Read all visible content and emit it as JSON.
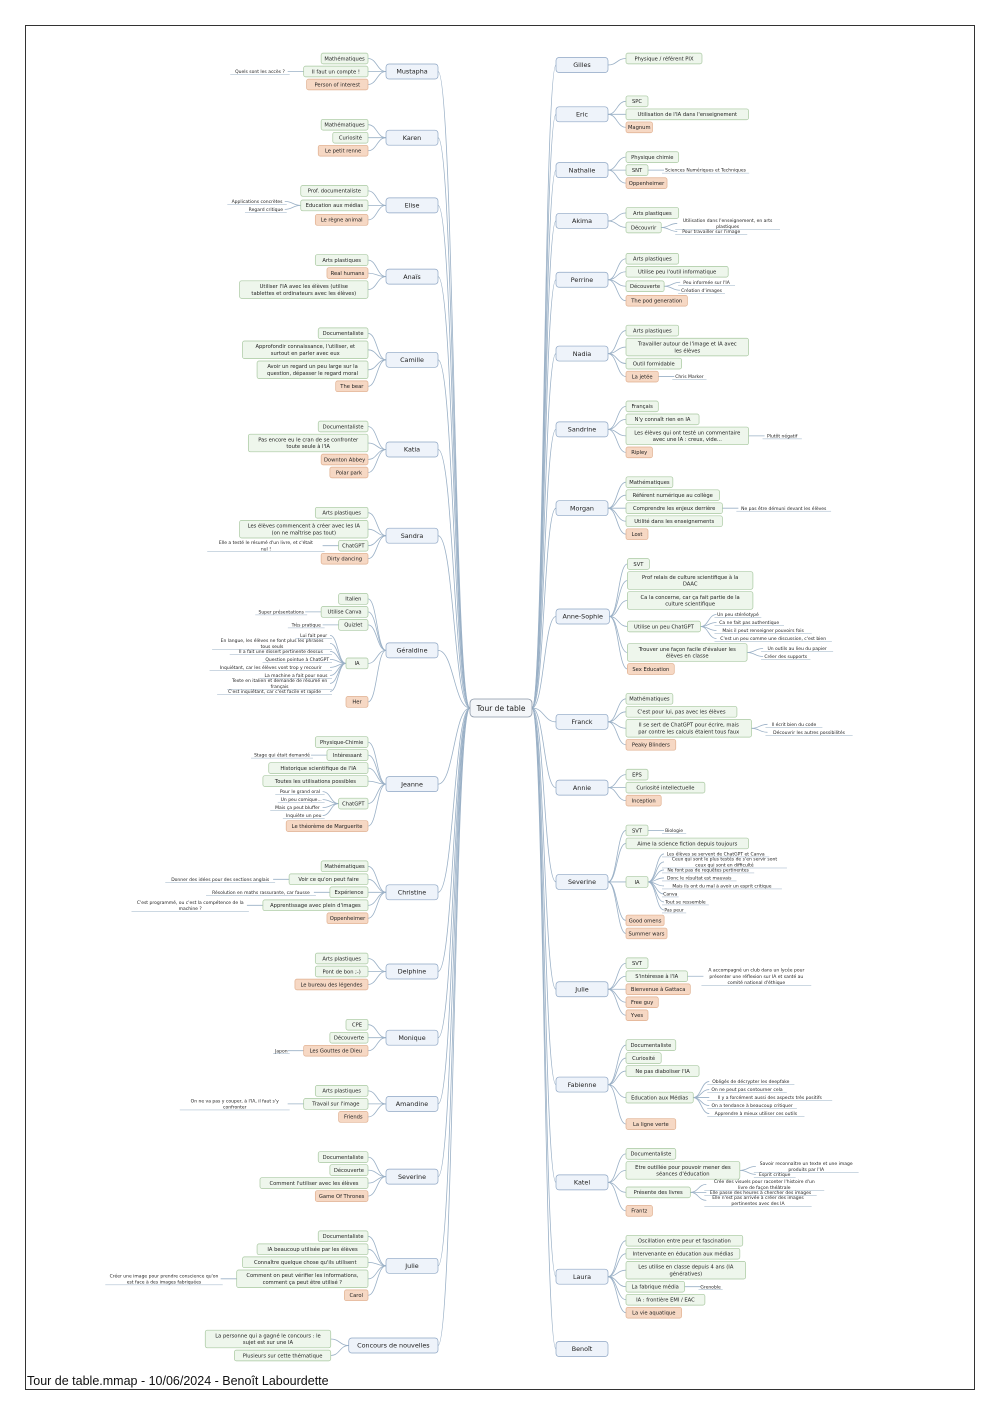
{
  "document": {
    "footer": "Tour de table.mmap - 10/06/2024 - Benoît Labourdette"
  },
  "colors": {
    "main_fill": "#eef3fa",
    "main_stroke": "#8ea6c4",
    "sub_fill": "#eef6ec",
    "sub_stroke": "#a8c8a0",
    "film_fill": "#f6d8c4",
    "film_stroke": "#e0b090",
    "line": "#9ab0c6"
  },
  "root": "Tour de table",
  "left": [
    {
      "name": "Mustapha",
      "children": [
        {
          "t": "Mathématiques"
        },
        {
          "t": "Il faut un compte !",
          "n": [
            "Quels sont les accès ?"
          ]
        },
        {
          "t": "Person of interest",
          "f": 1
        }
      ]
    },
    {
      "name": "Karen",
      "children": [
        {
          "t": "Mathématiques"
        },
        {
          "t": "Curiosité"
        },
        {
          "t": "Le petit renne",
          "f": 1
        }
      ]
    },
    {
      "name": "Elise",
      "children": [
        {
          "t": "Prof. documentaliste"
        },
        {
          "t": "Education aux médias",
          "n": [
            "Applications concrètes",
            "Regard critique"
          ]
        },
        {
          "t": "Le règne animal",
          "f": 1
        }
      ]
    },
    {
      "name": "Anaïs",
      "children": [
        {
          "t": "Arts plastiques"
        },
        {
          "t": "Real humans",
          "f": 1
        },
        {
          "t": "Utiliser l'IA avec les élèves (utilise tablettes et ordinateurs avec les élèves)"
        }
      ]
    },
    {
      "name": "Camille",
      "children": [
        {
          "t": "Documentaliste"
        },
        {
          "t": "Approfondir connaissance, l'utiliser, et surtout en parler avec eux"
        },
        {
          "t": "Avoir un regard un peu large sur la question, dépasser le regard moral"
        },
        {
          "t": "The bear",
          "f": 1
        }
      ]
    },
    {
      "name": "Katia",
      "children": [
        {
          "t": "Documentaliste"
        },
        {
          "t": "Pas encore eu le cran de se confronter toute seule à l'IA"
        },
        {
          "t": "Downton Abbey",
          "f": 1
        },
        {
          "t": "Polar park",
          "f": 1
        }
      ]
    },
    {
      "name": "Sandra",
      "children": [
        {
          "t": "Arts plastiques"
        },
        {
          "t": "Les élèves commencent à créer avec les IA (on ne maîtrise pas tout)"
        },
        {
          "t": "ChatGPT",
          "n": [
            "Elle a testé le résumé d'un livre, et c'était nul !"
          ]
        },
        {
          "t": "Dirty dancing",
          "f": 1
        }
      ]
    },
    {
      "name": "Géraldine",
      "children": [
        {
          "t": "Italien"
        },
        {
          "t": "Utilise Canva",
          "n": [
            "Super présentations"
          ]
        },
        {
          "t": "Quizlet",
          "n": [
            "Très pratique"
          ]
        },
        {
          "t": "IA",
          "n": [
            "Lui fait peur",
            "En langue, les élèves ne font plus les phrases tous seuls",
            "Il a fait une dissert pertinente dessus",
            "Question pointue à ChatGPT",
            "Inquiétant, car les élèves vont trop y recourir",
            "La machine a fait pour nous",
            "Texte en italien et demande de résumé en français",
            "C'est inquiétant, car c'est facile et rapide"
          ]
        },
        {
          "t": "Her",
          "f": 1
        }
      ]
    },
    {
      "name": "Jeanne",
      "children": [
        {
          "t": "Physique-Chimie"
        },
        {
          "t": "Intéressant",
          "n": [
            "Stage qui était demandé"
          ]
        },
        {
          "t": "Historique scientifique de l'IA"
        },
        {
          "t": "Toutes les utilisations possibles"
        },
        {
          "t": "ChatGPT",
          "n": [
            "Pour le grand oral",
            "Un peu comique...",
            "Mais ça peut bluffer",
            "Inquiète un peu"
          ]
        },
        {
          "t": "Le théorème de Marguerite",
          "f": 1
        }
      ]
    },
    {
      "name": "Christine",
      "children": [
        {
          "t": "Mathématiques"
        },
        {
          "t": "Voir ce qu'on peut faire",
          "n": [
            "Donner des idées pour des sections anglais"
          ]
        },
        {
          "t": "Expérience",
          "n": [
            "Résolution en maths rassurante, car fausse"
          ]
        },
        {
          "t": "Apprentissage avec plein d'images",
          "n": [
            "C'est programmé, ou c'est la compétence de la machine ?"
          ]
        },
        {
          "t": "Oppenheimer",
          "f": 1
        }
      ]
    },
    {
      "name": "Delphine",
      "children": [
        {
          "t": "Arts plastiques"
        },
        {
          "t": "Pont de bon ;-)"
        },
        {
          "t": "Le bureau des légendes",
          "f": 1
        }
      ]
    },
    {
      "name": "Monique",
      "children": [
        {
          "t": "CPE"
        },
        {
          "t": "Découverte"
        },
        {
          "t": "Les Gouttes de Dieu",
          "f": 1,
          "n": [
            "Japon"
          ]
        }
      ]
    },
    {
      "name": "Amandine",
      "children": [
        {
          "t": "Arts plastiques"
        },
        {
          "t": "Travail sur l'image",
          "n": [
            "On ne va pas y couper, à l'IA, il faut s'y confronter"
          ]
        },
        {
          "t": "Friends",
          "f": 1
        }
      ]
    },
    {
      "name": "Severine",
      "children": [
        {
          "t": "Documentaliste"
        },
        {
          "t": "Découverte"
        },
        {
          "t": "Comment l'utiliser avec les élèves"
        },
        {
          "t": "Game Of Thrones",
          "f": 1
        }
      ]
    },
    {
      "name": "Julie",
      "children": [
        {
          "t": "Documentaliste"
        },
        {
          "t": "IA beaucoup utilisée par les élèves"
        },
        {
          "t": "Connaître quelque chose qu'ils utilisent"
        },
        {
          "t": "Comment on peut vérifier les informations, comment ça peut être utilisé ?",
          "n": [
            "Créer une image pour prendre conscience qu'on est face à des images fabriquées"
          ]
        },
        {
          "t": "Carol",
          "f": 1
        }
      ]
    },
    {
      "name": "Concours de nouvelles",
      "children": [
        {
          "t": "La personne qui a gagné le concours : le sujet est sur une IA"
        },
        {
          "t": "Plusieurs sur cette thématique"
        }
      ]
    }
  ],
  "right": [
    {
      "name": "Gilles",
      "children": [
        {
          "t": "Physique / référent PIX"
        }
      ]
    },
    {
      "name": "Eric",
      "children": [
        {
          "t": "SPC"
        },
        {
          "t": "Utilisation de l'IA dans l'enseignement"
        },
        {
          "t": "Magnum",
          "f": 1
        }
      ]
    },
    {
      "name": "Nathalie",
      "children": [
        {
          "t": "Physique chimie"
        },
        {
          "t": "SNT",
          "n": [
            "Sciences Numériques et Techniques"
          ]
        },
        {
          "t": "Oppenheimer",
          "f": 1
        }
      ]
    },
    {
      "name": "Akima",
      "children": [
        {
          "t": "Arts plastiques"
        },
        {
          "t": "Découvrir",
          "n": [
            "Utilisation dans l'enseignement, en arts plastiques",
            "Pour travailler sur l'image"
          ]
        }
      ]
    },
    {
      "name": "Perrine",
      "children": [
        {
          "t": "Arts plastiques"
        },
        {
          "t": "Utilise peu l'outil informatique"
        },
        {
          "t": "Découverte",
          "n": [
            "Peu informée sur l'IA",
            "Création d'images"
          ]
        },
        {
          "t": "The pod generation",
          "f": 1
        }
      ]
    },
    {
      "name": "Nadia",
      "children": [
        {
          "t": "Arts plastiques"
        },
        {
          "t": "Travailler autour de l'image et IA avec les élèves"
        },
        {
          "t": "Outil formidable"
        },
        {
          "t": "La jetée",
          "f": 1,
          "n": [
            "Chris Marker"
          ]
        }
      ]
    },
    {
      "name": "Sandrine",
      "children": [
        {
          "t": "Français"
        },
        {
          "t": "N'y connaît rien en IA"
        },
        {
          "t": "Les élèves qui ont testé un commentaire avec une IA : creux, vide...",
          "n": [
            "Plutôt négatif"
          ]
        },
        {
          "t": "Ripley",
          "f": 1
        }
      ]
    },
    {
      "name": "Morgan",
      "children": [
        {
          "t": "Mathématiques"
        },
        {
          "t": "Référent numérique au collège"
        },
        {
          "t": "Comprendre les enjeux derrière",
          "n": [
            "Ne pas être démuni devant les élèves"
          ]
        },
        {
          "t": "Utilité dans les enseignements"
        },
        {
          "t": "Lost",
          "f": 1
        }
      ]
    },
    {
      "name": "Anne-Sophie",
      "children": [
        {
          "t": "SVT"
        },
        {
          "t": "Prof relais de culture scientifique à la DAAC"
        },
        {
          "t": "Ca la concerne, car ça fait partie de la culture scientifique"
        },
        {
          "t": "Utilise un peu ChatGPT",
          "n": [
            "Un peu stéréotypé",
            "Ca ne fait pas authentique",
            "Mais il peut renseigner pouvoirs fois",
            "C'est un peu comme une discussion, c'est bien"
          ]
        },
        {
          "t": "Trouver une façon facile d'évaluer les élèves en classe",
          "n": [
            "Un outils au lieu du papier",
            "Créer des supports"
          ]
        },
        {
          "t": "Sex Education",
          "f": 1
        }
      ]
    },
    {
      "name": "Franck",
      "children": [
        {
          "t": "Mathématiques"
        },
        {
          "t": "C'est pour lui, pas avec les élèves"
        },
        {
          "t": "Il se sert de ChatGPT pour écrire, mais par contre les calculs étaient tous faux",
          "n": [
            "Il écrit bien du code",
            "Découvrir les autres possibilités"
          ]
        },
        {
          "t": "Peaky Blinders",
          "f": 1
        }
      ]
    },
    {
      "name": "Annie",
      "children": [
        {
          "t": "EPS"
        },
        {
          "t": "Curiosité intellectuelle"
        },
        {
          "t": "Inception",
          "f": 1
        }
      ]
    },
    {
      "name": "Severine",
      "children": [
        {
          "t": "SVT",
          "n": [
            "Biologie"
          ]
        },
        {
          "t": "Aime la science fiction depuis toujours"
        },
        {
          "t": "IA",
          "n": [
            "Les élèves se servent de ChatGPT et Canva",
            "Ceux qui sont le plus testés de s'en servir sont ceux qui sont en difficulté",
            "Ne font pas de requêtes pertinentes",
            "Donc le résultat est mauvais",
            "Mais ils ont du mal à avoir un esprit critique",
            "Canva",
            "Tout se ressemble",
            "Pas peur"
          ]
        },
        {
          "t": "Good omens",
          "f": 1
        },
        {
          "t": "Summer wars",
          "f": 1
        }
      ]
    },
    {
      "name": "Julie",
      "children": [
        {
          "t": "SVT"
        },
        {
          "t": "S'intéresse à l'IA",
          "n": [
            "A accompagné un club dans un lycée pour présenter une réflexion sur IA et santé au comité national d'éthique"
          ]
        },
        {
          "t": "Bienvenue à Gattaca",
          "f": 1
        },
        {
          "t": "Free guy",
          "f": 1
        },
        {
          "t": "Yves",
          "f": 1
        }
      ]
    },
    {
      "name": "Fabienne",
      "children": [
        {
          "t": "Documentaliste"
        },
        {
          "t": "Curiosité"
        },
        {
          "t": "Ne pas diaboliser l'IA"
        },
        {
          "t": "Education aux Médias",
          "n": [
            "Obligés de décrypter les deepfake",
            "On ne peut pas contourner cela",
            "Il y a forcément aussi des aspects très positifs",
            "On a tendance à beaucoup critiquer",
            "Apprendre à mieux utiliser ces outils"
          ]
        },
        {
          "t": "La ligne verte",
          "f": 1
        }
      ]
    },
    {
      "name": "Katel",
      "children": [
        {
          "t": "Documentaliste"
        },
        {
          "t": "Etre outillée pour pouvoir mener des séances d'éducation",
          "n": [
            "Savoir reconnaître un texte et une image produits par l'IA",
            "Esprit critique"
          ]
        },
        {
          "t": "Présente des livres",
          "n": [
            "Crée des visuels pour raconter l'histoire d'un livre de façon théâtrale",
            "Elle passe des heures à chercher des images",
            "Elle n'est pas arrivée à créer des images pertinentes avec des IA"
          ]
        },
        {
          "t": "Frantz",
          "f": 1
        }
      ]
    },
    {
      "name": "Laura",
      "children": [
        {
          "t": "Oscillation entre peur et fascination"
        },
        {
          "t": "Intervenante en éducation aux médias"
        },
        {
          "t": "Les utilise en classe depuis 4 ans (IA génératives)"
        },
        {
          "t": "La fabrique média",
          "n": [
            "Grenoble"
          ]
        },
        {
          "t": "IA : frontière EMI / EAC"
        },
        {
          "t": "La vie aquatique",
          "f": 1
        }
      ]
    },
    {
      "name": "Benoît",
      "children": []
    }
  ]
}
